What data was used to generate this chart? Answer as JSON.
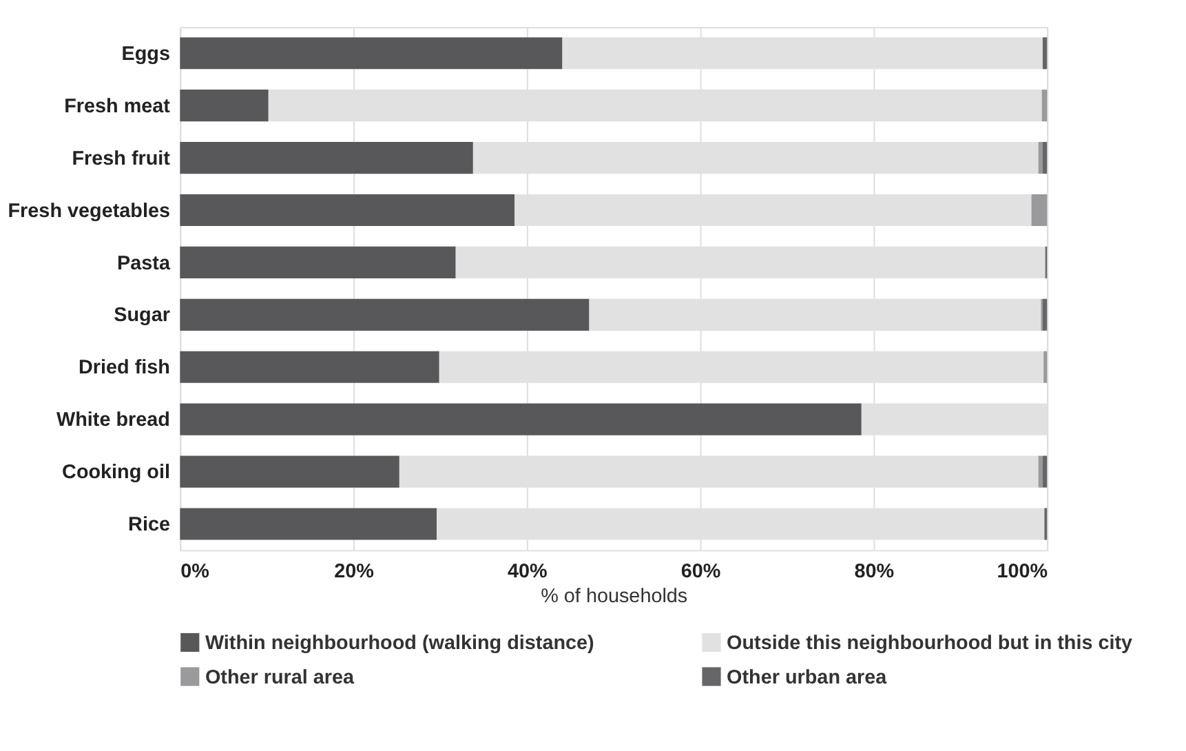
{
  "chart_data": {
    "type": "bar",
    "orientation": "horizontal",
    "stacked": true,
    "xlabel": "% of households",
    "categories": [
      "Eggs",
      "Fresh meat",
      "Fresh fruit",
      "Fresh vegetables",
      "Pasta",
      "Sugar",
      "Dried fish",
      "White bread",
      "Cooking oil",
      "Rice"
    ],
    "series": [
      {
        "name": "Within neighbourhood (walking distance)",
        "color": "#58585a",
        "values": [
          44.1,
          10.2,
          33.8,
          38.6,
          31.8,
          47.2,
          29.9,
          78.6,
          25.3,
          29.6
        ]
      },
      {
        "name": "Outside this neighbourhood but in this city",
        "color": "#e1e1e2",
        "values": [
          55.4,
          89.2,
          65.2,
          59.6,
          68.0,
          52.1,
          69.7,
          21.4,
          73.7,
          70.1
        ]
      },
      {
        "name": "Other rural area",
        "color": "#9a9a9c",
        "values": [
          0,
          0.6,
          0.5,
          1.8,
          0,
          0.2,
          0.4,
          0,
          0.5,
          0
        ]
      },
      {
        "name": "Other urban area",
        "color": "#666668",
        "values": [
          0.5,
          0,
          0.5,
          0,
          0.2,
          0.5,
          0,
          0,
          0.5,
          0.3
        ]
      }
    ],
    "xlim": [
      0,
      100
    ],
    "xticks": [
      {
        "value": 0,
        "label": "0%"
      },
      {
        "value": 20,
        "label": "20%"
      },
      {
        "value": 40,
        "label": "40%"
      },
      {
        "value": 60,
        "label": "60%"
      },
      {
        "value": 80,
        "label": "80%"
      },
      {
        "value": 100,
        "label": "100%"
      }
    ],
    "grid": "x",
    "legend": "bottom"
  }
}
